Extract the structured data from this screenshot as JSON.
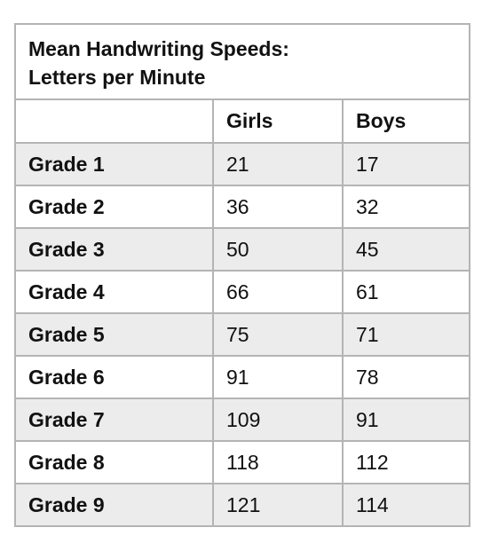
{
  "chart_data": {
    "type": "table",
    "title_line1": "Mean Handwriting Speeds:",
    "title_line2": "Letters per Minute",
    "columns": [
      "",
      "Girls",
      "Boys"
    ],
    "rows": [
      {
        "label": "Grade 1",
        "girls": "21",
        "boys": "17"
      },
      {
        "label": "Grade 2",
        "girls": "36",
        "boys": "32"
      },
      {
        "label": "Grade 3",
        "girls": "50",
        "boys": "45"
      },
      {
        "label": "Grade 4",
        "girls": "66",
        "boys": "61"
      },
      {
        "label": "Grade 5",
        "girls": "75",
        "boys": "71"
      },
      {
        "label": "Grade 6",
        "girls": "91",
        "boys": "78"
      },
      {
        "label": "Grade 7",
        "girls": "109",
        "boys": "91"
      },
      {
        "label": "Grade 8",
        "girls": "118",
        "boys": "112"
      },
      {
        "label": "Grade 9",
        "girls": "121",
        "boys": "114"
      }
    ]
  },
  "colors": {
    "shaded_row": "#ececec",
    "border": "#b4b4b4",
    "text": "#111111"
  }
}
